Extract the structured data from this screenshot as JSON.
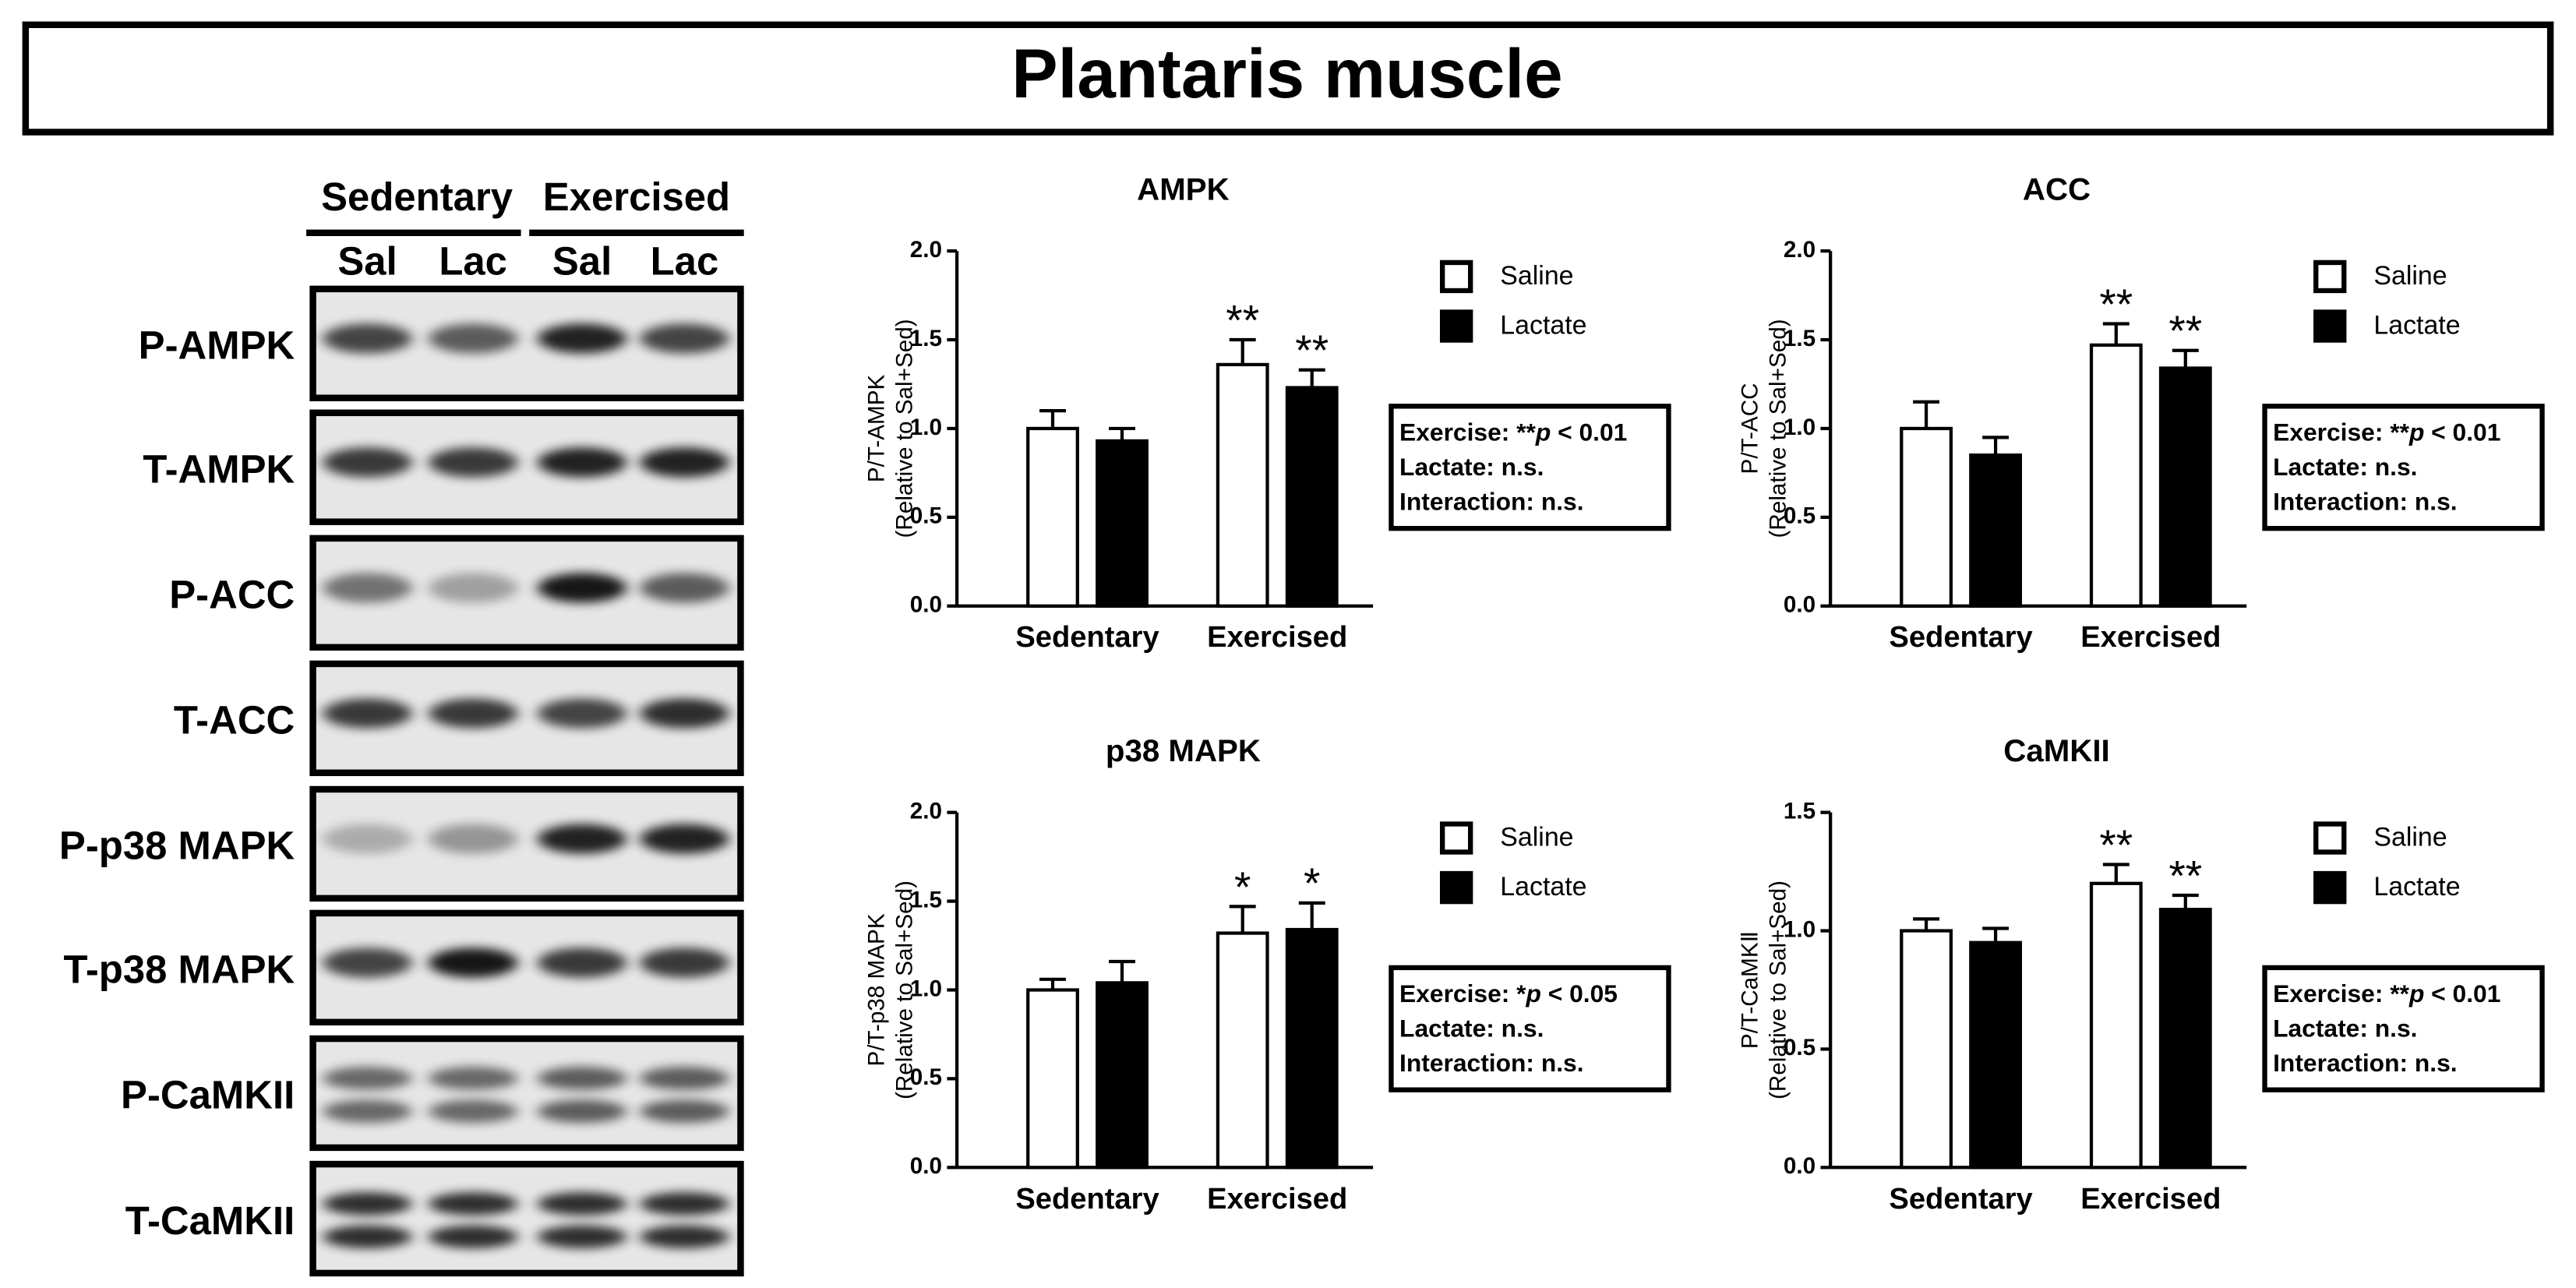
{
  "title": "Plantaris muscle",
  "blot": {
    "groups": [
      "Sedentary",
      "Exercised"
    ],
    "lanes": [
      "Sal",
      "Lac",
      "Sal",
      "Lac"
    ],
    "rows": [
      "P-AMPK",
      "T-AMPK",
      "P-ACC",
      "T-ACC",
      "P-p38 MAPK",
      "T-p38 MAPK",
      "P-CaMKII",
      "T-CaMKII"
    ]
  },
  "chart_data": [
    {
      "type": "bar",
      "title": "AMPK",
      "y_label": [
        "P/T-AMPK",
        "(Relative to Sal+Sed)"
      ],
      "categories": [
        "Sedentary",
        "Exercised"
      ],
      "series": [
        {
          "name": "Saline",
          "color": "#ffffff",
          "values": [
            1.0,
            1.36
          ],
          "errors": [
            0.1,
            0.14
          ],
          "markers": [
            null,
            "**"
          ]
        },
        {
          "name": "Lactate",
          "color": "#000000",
          "values": [
            0.93,
            1.23
          ],
          "errors": [
            0.07,
            0.1
          ],
          "markers": [
            null,
            "**"
          ]
        }
      ],
      "ylim": [
        0,
        2
      ],
      "yticks": [
        {
          "value": 0,
          "label": "0.0"
        },
        {
          "value": 0.5,
          "label": "0.5"
        },
        {
          "value": 1,
          "label": "1.0"
        },
        {
          "value": 1.5,
          "label": "1.5"
        },
        {
          "value": 2,
          "label": "2.0"
        }
      ],
      "stats": [
        [
          "Exercise: **",
          "p",
          " < 0.01"
        ],
        [
          "Lactate: n.s."
        ],
        [
          "Interaction: n.s."
        ]
      ]
    },
    {
      "type": "bar",
      "title": "ACC",
      "y_label": [
        "P/T-ACC",
        "(Relative to Sal+Sed)"
      ],
      "categories": [
        "Sedentary",
        "Exercised"
      ],
      "series": [
        {
          "name": "Saline",
          "color": "#ffffff",
          "values": [
            1.0,
            1.47
          ],
          "errors": [
            0.15,
            0.12
          ],
          "markers": [
            null,
            "**"
          ]
        },
        {
          "name": "Lactate",
          "color": "#000000",
          "values": [
            0.85,
            1.34
          ],
          "errors": [
            0.1,
            0.1
          ],
          "markers": [
            null,
            "**"
          ]
        }
      ],
      "ylim": [
        0,
        2
      ],
      "yticks": [
        {
          "value": 0,
          "label": "0.0"
        },
        {
          "value": 0.5,
          "label": "0.5"
        },
        {
          "value": 1,
          "label": "1.0"
        },
        {
          "value": 1.5,
          "label": "1.5"
        },
        {
          "value": 2,
          "label": "2.0"
        }
      ],
      "stats": [
        [
          "Exercise: **",
          "p",
          " < 0.01"
        ],
        [
          "Lactate: n.s."
        ],
        [
          "Interaction: n.s."
        ]
      ]
    },
    {
      "type": "bar",
      "title": "p38 MAPK",
      "y_label": [
        "P/T-p38 MAPK",
        "(Relative to Sal+Sed)"
      ],
      "categories": [
        "Sedentary",
        "Exercised"
      ],
      "series": [
        {
          "name": "Saline",
          "color": "#ffffff",
          "values": [
            1.0,
            1.32
          ],
          "errors": [
            0.06,
            0.15
          ],
          "markers": [
            null,
            "*"
          ]
        },
        {
          "name": "Lactate",
          "color": "#000000",
          "values": [
            1.04,
            1.34
          ],
          "errors": [
            0.12,
            0.15
          ],
          "markers": [
            null,
            "*"
          ]
        }
      ],
      "ylim": [
        0,
        2
      ],
      "yticks": [
        {
          "value": 0,
          "label": "0.0"
        },
        {
          "value": 0.5,
          "label": "0.5"
        },
        {
          "value": 1,
          "label": "1.0"
        },
        {
          "value": 1.5,
          "label": "1.5"
        },
        {
          "value": 2,
          "label": "2.0"
        }
      ],
      "stats": [
        [
          "Exercise: *",
          "p",
          " < 0.05"
        ],
        [
          "Lactate: n.s."
        ],
        [
          "Interaction: n.s."
        ]
      ]
    },
    {
      "type": "bar",
      "title": "CaMKII",
      "y_label": [
        "P/T-CaMKⅡ",
        "(Relative to Sal+Sed)"
      ],
      "categories": [
        "Sedentary",
        "Exercised"
      ],
      "series": [
        {
          "name": "Saline",
          "color": "#ffffff",
          "values": [
            1.0,
            1.2
          ],
          "errors": [
            0.05,
            0.08
          ],
          "markers": [
            null,
            "**"
          ]
        },
        {
          "name": "Lactate",
          "color": "#000000",
          "values": [
            0.95,
            1.09
          ],
          "errors": [
            0.06,
            0.06
          ],
          "markers": [
            null,
            "**"
          ]
        }
      ],
      "ylim": [
        0,
        1.5
      ],
      "yticks": [
        {
          "value": 0,
          "label": "0.0"
        },
        {
          "value": 0.5,
          "label": "0.5"
        },
        {
          "value": 1,
          "label": "1.0"
        },
        {
          "value": 1.5,
          "label": "1.5"
        }
      ],
      "stats": [
        [
          "Exercise: **",
          "p",
          " < 0.01"
        ],
        [
          "Lactate: n.s."
        ],
        [
          "Interaction: n.s."
        ]
      ]
    }
  ]
}
